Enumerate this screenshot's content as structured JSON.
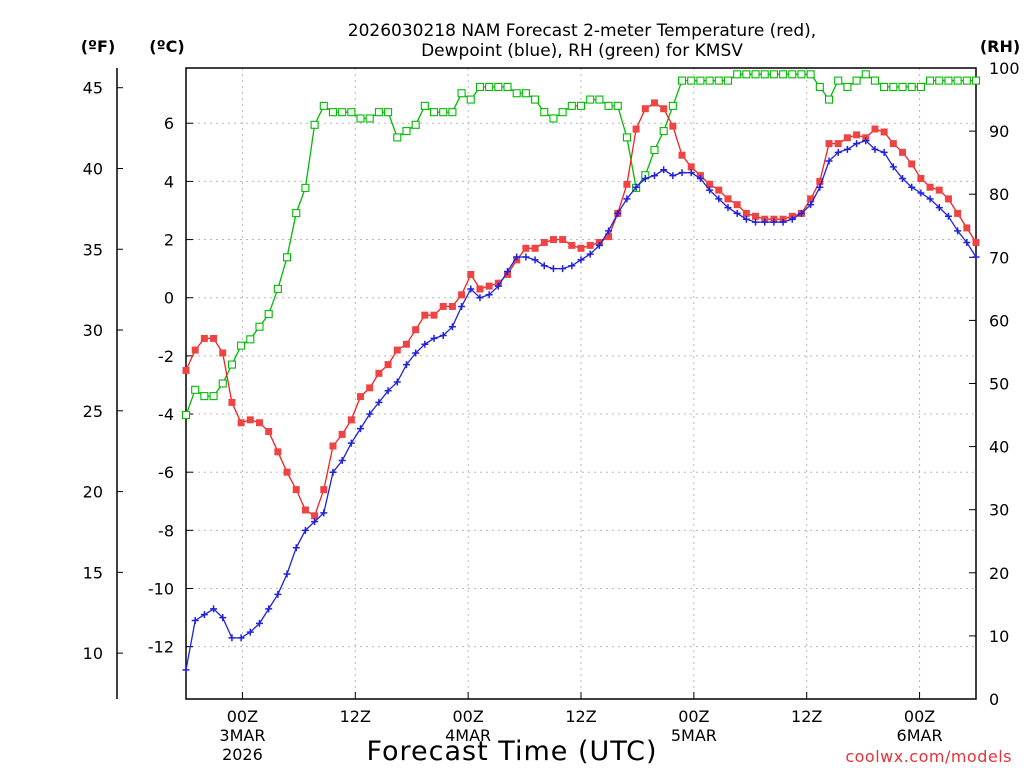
{
  "chart_data": {
    "type": "line",
    "title_line1": "2026030218 NAM Forecast 2-meter Temperature (red),",
    "title_line2": "Dewpoint (blue), RH (green) for KMSV",
    "axis_units": {
      "fahrenheit": "(ºF)",
      "celsius": "(ºC)",
      "rh": "(RH)"
    },
    "xlabel": "Forecast Time (UTC)",
    "credit": "coolwx.com/models",
    "x_range_hours": [
      0,
      84
    ],
    "celsius_range": [
      -13.8,
      7.9
    ],
    "rh_range": [
      0,
      100
    ],
    "celsius_ticks": [
      "-12",
      "-10",
      "-8",
      "-6",
      "-4",
      "-2",
      "0",
      "2",
      "4",
      "6"
    ],
    "fahrenheit_ticks": [
      "10",
      "15",
      "20",
      "25",
      "30",
      "35",
      "40",
      "45"
    ],
    "rh_ticks": [
      "0",
      "10",
      "20",
      "30",
      "40",
      "50",
      "60",
      "70",
      "80",
      "90",
      "100"
    ],
    "x_ticks": [
      {
        "hour": 6,
        "line1": "00Z",
        "line2": "3MAR",
        "line3": "2026"
      },
      {
        "hour": 18,
        "line1": "12Z"
      },
      {
        "hour": 30,
        "line1": "00Z",
        "line2": "4MAR"
      },
      {
        "hour": 42,
        "line1": "12Z"
      },
      {
        "hour": 54,
        "line1": "00Z",
        "line2": "5MAR"
      },
      {
        "hour": 66,
        "line1": "12Z"
      },
      {
        "hour": 78,
        "line1": "00Z",
        "line2": "6MAR"
      }
    ],
    "colors": {
      "temperature": "#ee2222",
      "dewpoint": "#2222dd",
      "rh": "#00bb00",
      "temperature_marker": "#ee4444"
    },
    "series": [
      {
        "name": "Temperature (red)",
        "unit": "C",
        "marker": "filled-square",
        "values": [
          -2.5,
          -1.8,
          -1.4,
          -1.4,
          -1.9,
          -3.6,
          -4.3,
          -4.2,
          -4.3,
          -4.6,
          -5.3,
          -6.0,
          -6.6,
          -7.3,
          -7.5,
          -6.6,
          -5.1,
          -4.7,
          -4.2,
          -3.4,
          -3.1,
          -2.6,
          -2.3,
          -1.8,
          -1.6,
          -1.1,
          -0.6,
          -0.6,
          -0.3,
          -0.3,
          0.1,
          0.8,
          0.3,
          0.4,
          0.5,
          0.8,
          1.3,
          1.7,
          1.7,
          1.9,
          2.0,
          2.0,
          1.8,
          1.7,
          1.8,
          1.9,
          2.1,
          2.9,
          3.9,
          5.8,
          6.5,
          6.7,
          6.5,
          5.9,
          4.9,
          4.5,
          4.2,
          3.9,
          3.7,
          3.4,
          3.2,
          2.9,
          2.8,
          2.7,
          2.7,
          2.7,
          2.8,
          2.9,
          3.4,
          4.0,
          5.3,
          5.3,
          5.5,
          5.6,
          5.5,
          5.8,
          5.7,
          5.3,
          5.0,
          4.6,
          4.1,
          3.8,
          3.7,
          3.4,
          2.9,
          2.4,
          1.9
        ]
      },
      {
        "name": "Dewpoint (blue)",
        "unit": "C",
        "marker": "plus",
        "values": [
          -12.8,
          -11.1,
          -10.9,
          -10.7,
          -11.0,
          -11.7,
          -11.7,
          -11.5,
          -11.2,
          -10.7,
          -10.2,
          -9.5,
          -8.6,
          -8.0,
          -7.7,
          -7.4,
          -6.0,
          -5.6,
          -5.0,
          -4.5,
          -4.0,
          -3.6,
          -3.2,
          -2.9,
          -2.3,
          -1.9,
          -1.6,
          -1.4,
          -1.3,
          -1.0,
          -0.3,
          0.3,
          0.0,
          0.1,
          0.4,
          0.9,
          1.4,
          1.4,
          1.3,
          1.1,
          1.0,
          1.0,
          1.1,
          1.3,
          1.5,
          1.8,
          2.3,
          2.9,
          3.4,
          3.8,
          4.1,
          4.2,
          4.4,
          4.2,
          4.3,
          4.3,
          4.1,
          3.7,
          3.4,
          3.1,
          2.9,
          2.7,
          2.6,
          2.6,
          2.6,
          2.6,
          2.7,
          2.9,
          3.2,
          3.8,
          4.7,
          5.0,
          5.1,
          5.3,
          5.4,
          5.1,
          5.0,
          4.5,
          4.1,
          3.8,
          3.6,
          3.4,
          3.1,
          2.8,
          2.3,
          1.9,
          1.4
        ]
      },
      {
        "name": "RH (green)",
        "unit": "%",
        "marker": "open-square",
        "values": [
          45,
          49,
          48,
          48,
          50,
          53,
          56,
          57,
          59,
          61,
          65,
          70,
          77,
          81,
          91,
          94,
          93,
          93,
          93,
          92,
          92,
          93,
          93,
          89,
          90,
          91,
          94,
          93,
          93,
          93,
          96,
          95,
          97,
          97,
          97,
          97,
          96,
          96,
          95,
          93,
          92,
          93,
          94,
          94,
          95,
          95,
          94,
          94,
          89,
          81,
          83,
          87,
          90,
          94,
          98,
          98,
          98,
          98,
          98,
          98,
          99,
          99,
          99,
          99,
          99,
          99,
          99,
          99,
          99,
          97,
          95,
          98,
          97,
          98,
          99,
          98,
          97,
          97,
          97,
          97,
          97,
          98,
          98,
          98,
          98,
          98,
          98
        ]
      }
    ]
  }
}
